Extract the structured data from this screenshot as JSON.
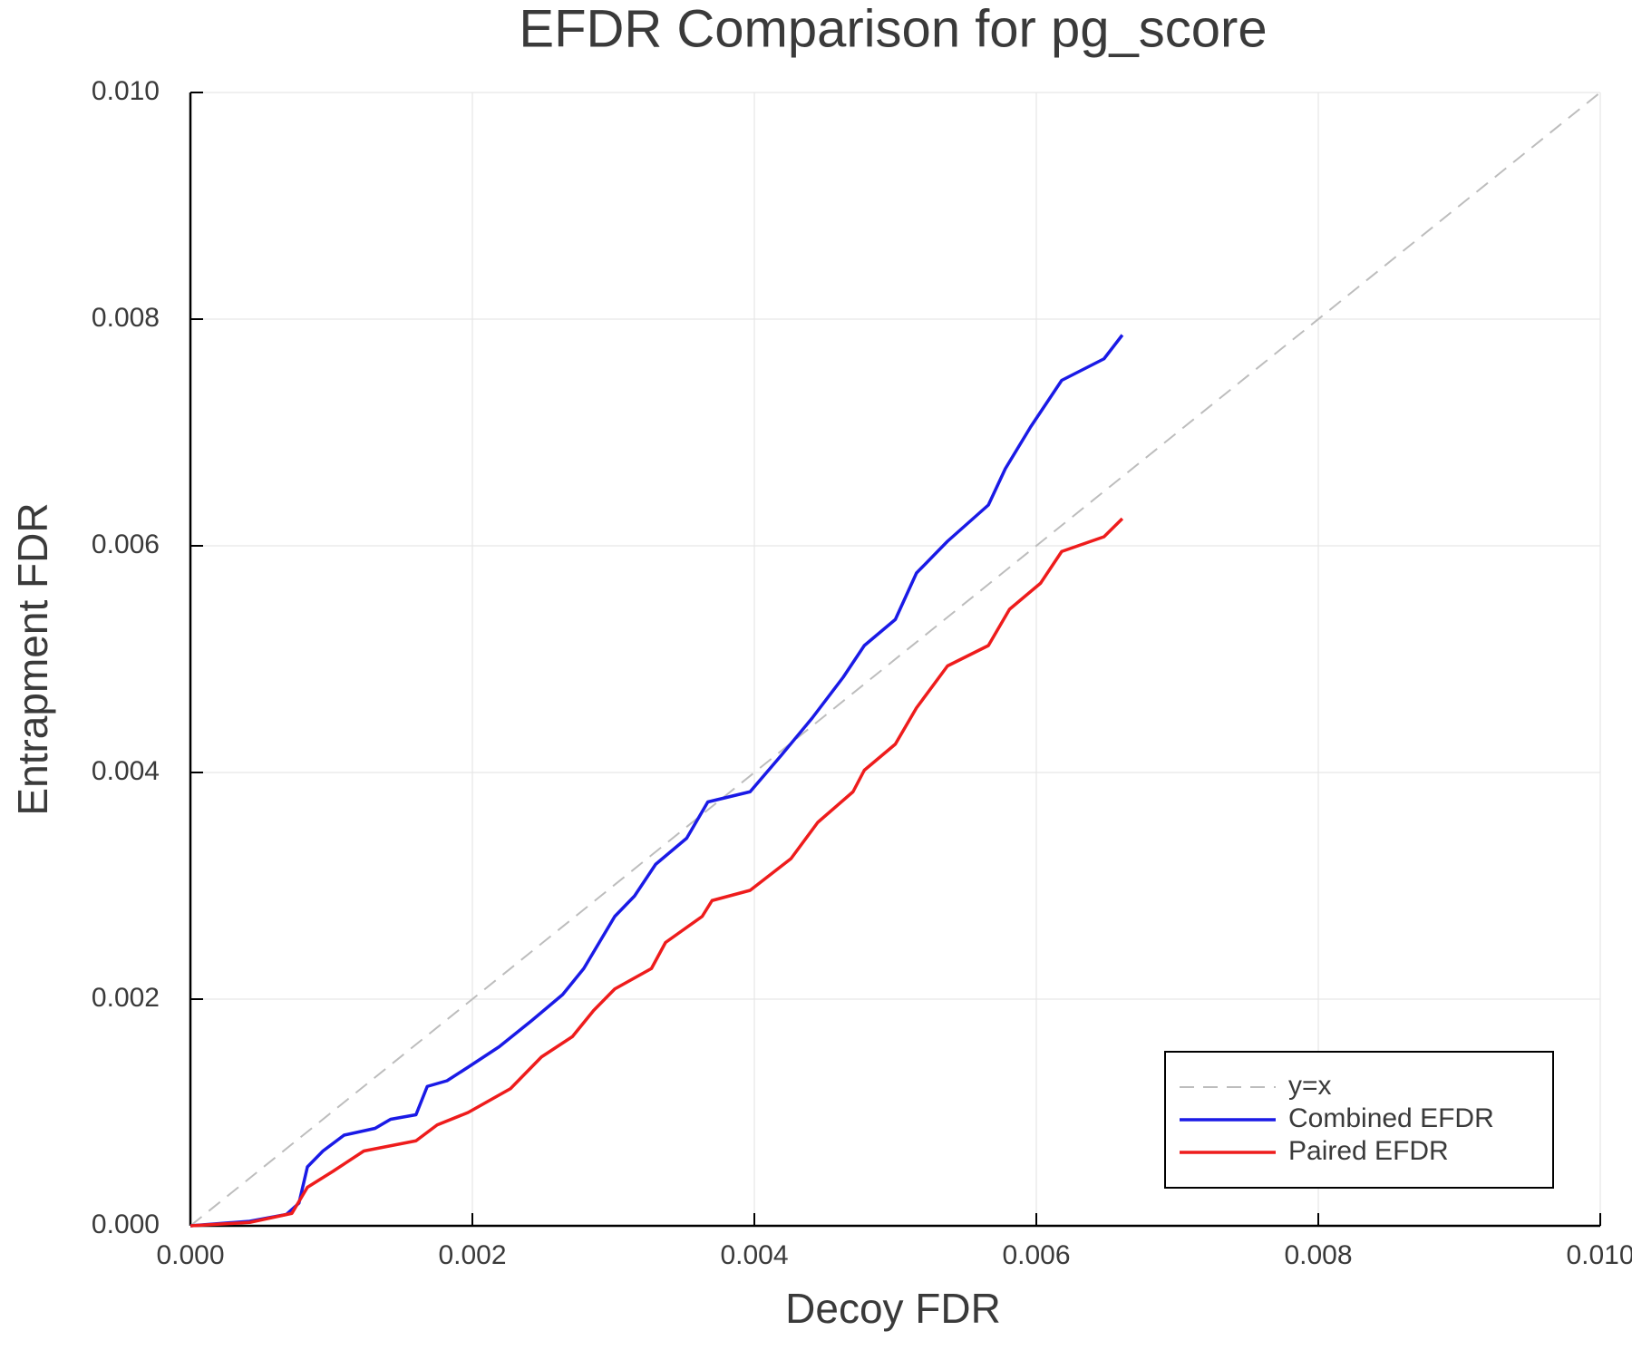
{
  "chart_data": {
    "type": "line",
    "title": "EFDR Comparison for pg_score",
    "x_label": "Decoy FDR",
    "y_label": "Entrapment FDR",
    "xlim": [
      0,
      0.01
    ],
    "ylim": [
      0,
      0.01
    ],
    "xticks": [
      {
        "value": 0,
        "label": "0.000"
      },
      {
        "value": 0.002,
        "label": "0.002"
      },
      {
        "value": 0.004,
        "label": "0.004"
      },
      {
        "value": 0.006,
        "label": "0.006"
      },
      {
        "value": 0.008,
        "label": "0.008"
      },
      {
        "value": 0.01,
        "label": "0.010"
      }
    ],
    "yticks": [
      {
        "value": 0,
        "label": "0.000"
      },
      {
        "value": 0.002,
        "label": "0.002"
      },
      {
        "value": 0.004,
        "label": "0.004"
      },
      {
        "value": 0.006,
        "label": "0.006"
      },
      {
        "value": 0.008,
        "label": "0.008"
      },
      {
        "value": 0.01,
        "label": "0.010"
      }
    ],
    "grid": true,
    "legend": "lower right",
    "series": [
      {
        "name": "y=x",
        "color": "#bdbdbd",
        "style": "dashed",
        "x": [
          0,
          0.01
        ],
        "values": [
          0,
          0.01
        ]
      },
      {
        "name": "Combined EFDR",
        "color": "#1a1ae6",
        "style": "solid",
        "x": [
          0,
          0.00042,
          0.00068,
          0.00077,
          0.00083,
          0.00094,
          0.00109,
          0.00131,
          0.00142,
          0.0016,
          0.00168,
          0.00182,
          0.00197,
          0.00219,
          0.00242,
          0.00264,
          0.00279,
          0.0029,
          0.00301,
          0.00315,
          0.0033,
          0.00352,
          0.00367,
          0.00397,
          0.00419,
          0.00441,
          0.00463,
          0.00478,
          0.005,
          0.00515,
          0.00537,
          0.00566,
          0.00578,
          0.00596,
          0.00618,
          0.00648,
          0.00661
        ],
        "values": [
          0,
          4e-05,
          0.0001,
          0.0002,
          0.00052,
          0.00066,
          0.0008,
          0.00086,
          0.00094,
          0.00098,
          0.00123,
          0.00128,
          0.0014,
          0.00158,
          0.00181,
          0.00204,
          0.00227,
          0.0025,
          0.00273,
          0.00291,
          0.00319,
          0.00342,
          0.00374,
          0.00383,
          0.00415,
          0.00448,
          0.00484,
          0.00512,
          0.00535,
          0.00576,
          0.00604,
          0.00636,
          0.00668,
          0.00705,
          0.00746,
          0.00765,
          0.00786
        ]
      },
      {
        "name": "Paired EFDR",
        "color": "#ee1c1c",
        "style": "solid",
        "x": [
          0,
          0.00042,
          0.00072,
          0.00083,
          0.00101,
          0.00123,
          0.0016,
          0.00175,
          0.00197,
          0.00227,
          0.00249,
          0.00271,
          0.00286,
          0.00301,
          0.00327,
          0.00337,
          0.00363,
          0.0037,
          0.00397,
          0.00426,
          0.00445,
          0.0047,
          0.00478,
          0.005,
          0.00515,
          0.00537,
          0.00566,
          0.00581,
          0.00603,
          0.00618,
          0.00648,
          0.00661
        ],
        "values": [
          0,
          3e-05,
          0.00011,
          0.00034,
          0.00048,
          0.00066,
          0.00075,
          0.00089,
          0.001,
          0.00121,
          0.00149,
          0.00167,
          0.0019,
          0.00209,
          0.00227,
          0.0025,
          0.00273,
          0.00287,
          0.00296,
          0.00324,
          0.00356,
          0.00383,
          0.00402,
          0.00425,
          0.00457,
          0.00494,
          0.00512,
          0.00544,
          0.00567,
          0.00595,
          0.00608,
          0.00624
        ]
      }
    ]
  }
}
